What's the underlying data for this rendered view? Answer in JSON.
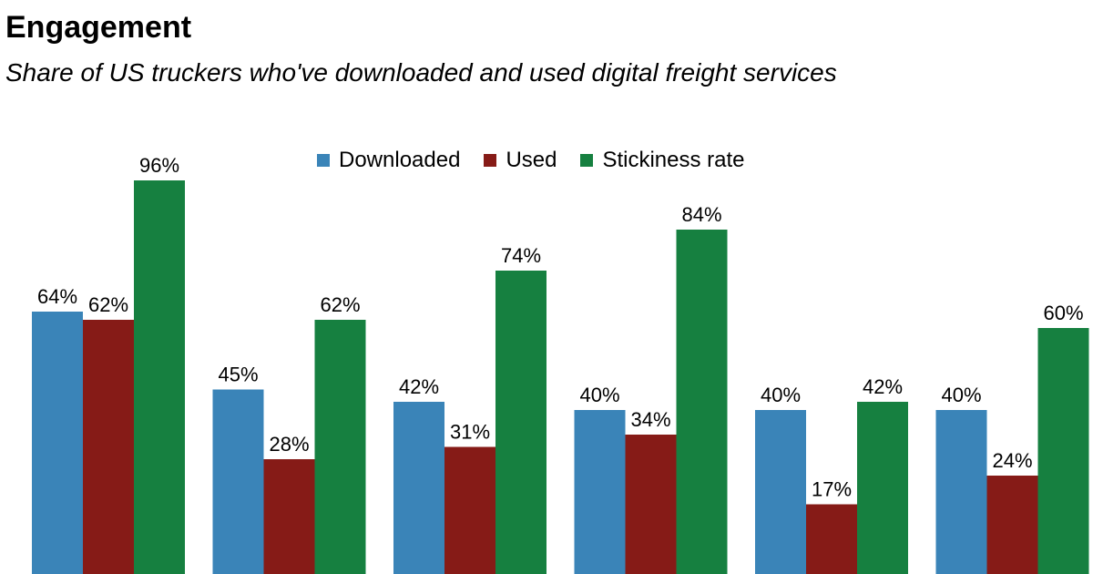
{
  "chart_data": {
    "type": "bar",
    "title": "Engagement",
    "subtitle": "Share of US truckers who've downloaded and used digital freight services",
    "categories": [
      "",
      "",
      "",
      "",
      "",
      ""
    ],
    "series": [
      {
        "name": "Downloaded",
        "color": "#3a84b8",
        "values": [
          64,
          45,
          42,
          40,
          40,
          40
        ],
        "labels": [
          "64%",
          "45%",
          "42%",
          "40%",
          "40%",
          "40%"
        ]
      },
      {
        "name": "Used",
        "color": "#861b17",
        "values": [
          62,
          28,
          31,
          34,
          17,
          24
        ],
        "labels": [
          "62%",
          "28%",
          "31%",
          "34%",
          "17%",
          "24%"
        ]
      },
      {
        "name": "Stickiness rate",
        "color": "#168040",
        "values": [
          96,
          62,
          74,
          84,
          42,
          60
        ],
        "labels": [
          "96%",
          "62%",
          "74%",
          "84%",
          "42%",
          "60%"
        ]
      }
    ],
    "ylim": [
      0,
      100
    ],
    "value_format": "percent",
    "legend_position": "top-center",
    "grid": false,
    "xlabel": "",
    "ylabel": ""
  }
}
